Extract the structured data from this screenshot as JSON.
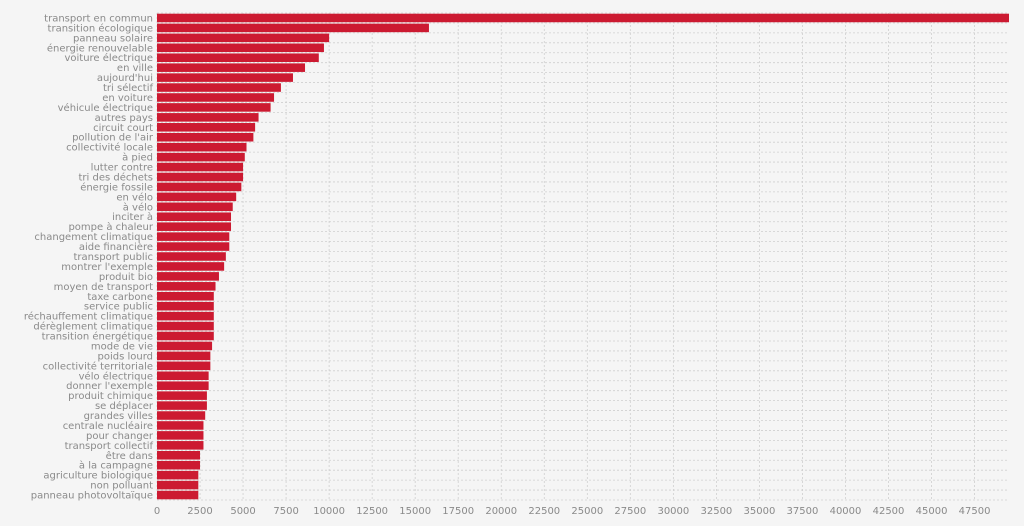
{
  "chart_data": {
    "type": "bar",
    "orientation": "horizontal",
    "bar_color": "#cc1a31",
    "label_color": "#8a8a8a",
    "grid": true,
    "xlim": [
      0,
      49500
    ],
    "xticks": [
      0,
      2500,
      5000,
      7500,
      10000,
      12500,
      15000,
      17500,
      20000,
      22500,
      25000,
      27500,
      30000,
      32500,
      35000,
      37500,
      40000,
      42500,
      45000,
      47500
    ],
    "categories": [
      "transport en commun",
      "transition écologique",
      "panneau solaire",
      "énergie renouvelable",
      "voiture électrique",
      "en ville",
      "aujourd'hui",
      "tri sélectif",
      "en voiture",
      "véhicule électrique",
      "autres pays",
      "circuit court",
      "pollution de l'air",
      "collectivité locale",
      "à pied",
      "lutter contre",
      "tri des déchets",
      "énergie fossile",
      "en vélo",
      "à vélo",
      "inciter à",
      "pompe à chaleur",
      "changement climatique",
      "aide financière",
      "transport public",
      "montrer l'exemple",
      "produit bio",
      "moyen de transport",
      "taxe carbone",
      "service public",
      "réchauffement climatique",
      "dérèglement climatique",
      "transition énergétique",
      "mode de vie",
      "poids lourd",
      "collectivité territoriale",
      "vélo électrique",
      "donner l'exemple",
      "produit chimique",
      "se déplacer",
      "grandes villes",
      "centrale nucléaire",
      "pour changer",
      "transport collectif",
      "être dans",
      "à la campagne",
      "agriculture biologique",
      "non polluant",
      "panneau photovoltaïque"
    ],
    "values": [
      49500,
      15800,
      10000,
      9700,
      9400,
      8600,
      7900,
      7200,
      6800,
      6600,
      5900,
      5700,
      5600,
      5200,
      5100,
      5000,
      5000,
      4900,
      4600,
      4400,
      4300,
      4300,
      4200,
      4200,
      4000,
      3900,
      3600,
      3400,
      3300,
      3300,
      3300,
      3300,
      3300,
      3200,
      3100,
      3100,
      3000,
      3000,
      2900,
      2900,
      2800,
      2700,
      2700,
      2700,
      2500,
      2500,
      2400,
      2400,
      2400
    ]
  }
}
